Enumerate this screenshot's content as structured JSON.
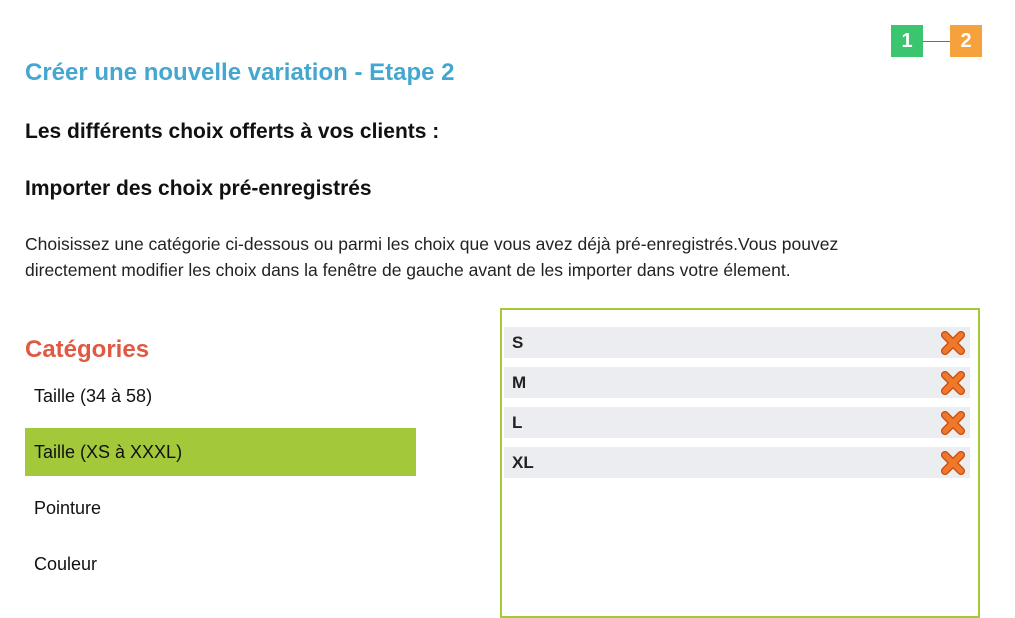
{
  "steps": [
    "1",
    "2"
  ],
  "page_title": "Créer une nouvelle variation - Etape 2",
  "subtitle": "Les différents choix offerts à vos clients :",
  "import_title": "Importer des choix pré-enregistrés",
  "description": "Choisissez une catégorie ci-dessous ou parmi les choix que vous avez déjà pré-enregistrés.Vous pouvez directement modifier les choix dans la fenêtre de gauche avant de les importer dans votre élement.",
  "categories": {
    "title": "Catégories",
    "items": [
      {
        "label": "Taille (34 à 58)"
      },
      {
        "label": "Taille (XS à XXXL)"
      },
      {
        "label": "Pointure"
      },
      {
        "label": "Couleur"
      }
    ]
  },
  "choices": [
    {
      "label": "S"
    },
    {
      "label": "M"
    },
    {
      "label": "L"
    },
    {
      "label": "XL"
    }
  ],
  "colors": {
    "title": "#45a7cf",
    "categories_title": "#e05a43",
    "active_category": "#a3c93a",
    "step1": "#3cc56f",
    "step2": "#f6a23c",
    "delete_icon": "#e8641a"
  },
  "icons": {
    "delete": "delete-x-icon"
  }
}
